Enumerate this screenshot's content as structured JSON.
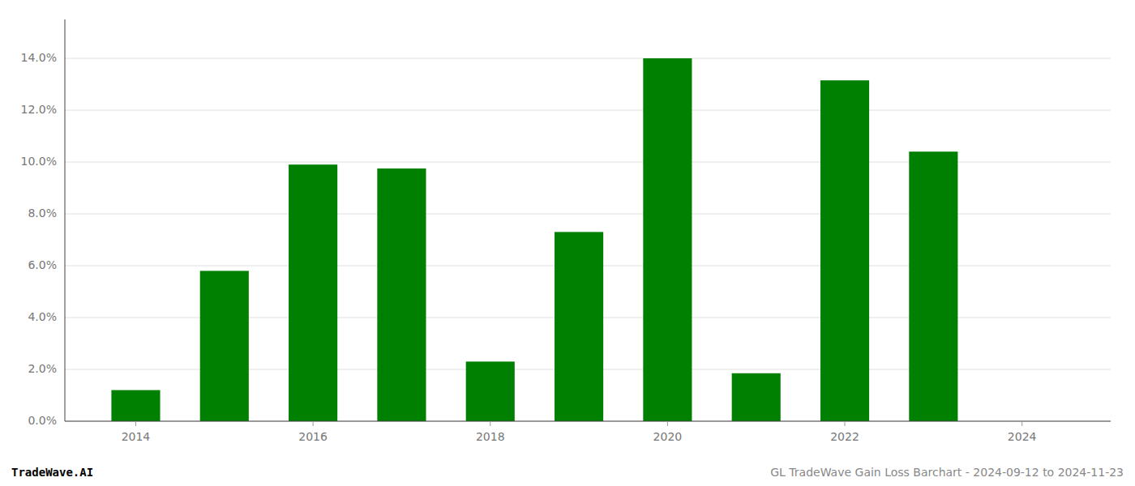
{
  "chart_data": {
    "type": "bar",
    "x": [
      2014,
      2015,
      2016,
      2017,
      2018,
      2019,
      2020,
      2021,
      2022,
      2023,
      2024
    ],
    "values": [
      0.012,
      0.058,
      0.099,
      0.0975,
      0.023,
      0.073,
      0.14,
      0.0185,
      0.1315,
      0.104,
      null
    ],
    "color": "#008000",
    "xlim": [
      2013.2,
      2025.0
    ],
    "xticks": [
      2014,
      2016,
      2018,
      2020,
      2022,
      2024
    ],
    "ylim": [
      0,
      0.155
    ],
    "yticks": [
      {
        "value": 0.0,
        "label": "0.0%"
      },
      {
        "value": 0.02,
        "label": "2.0%"
      },
      {
        "value": 0.04,
        "label": "4.0%"
      },
      {
        "value": 0.06,
        "label": "6.0%"
      },
      {
        "value": 0.08,
        "label": "8.0%"
      },
      {
        "value": 0.1,
        "label": "10.0%"
      },
      {
        "value": 0.12,
        "label": "12.0%"
      },
      {
        "value": 0.14,
        "label": "14.0%"
      }
    ],
    "grid": true,
    "annotations": [
      "TradeWave.AI",
      "GL TradeWave Gain Loss Barchart - 2024-09-12 to 2024-11-23"
    ]
  }
}
